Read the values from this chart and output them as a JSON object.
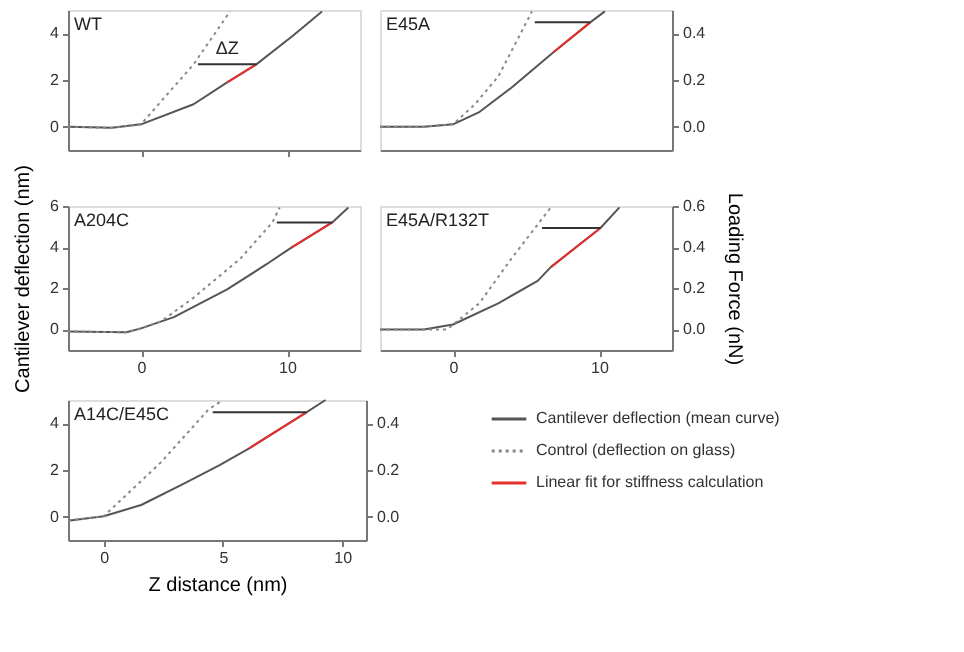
{
  "chart_data": [
    {
      "type": "line",
      "title": "WT",
      "xlim": [
        -5,
        15
      ],
      "xticks": [
        0,
        10
      ],
      "ylim": [
        -1,
        5
      ],
      "yticks": [
        0,
        2,
        4
      ],
      "tick_labels": "y",
      "annotations": [
        "ΔZ"
      ],
      "series": [
        {
          "color": "#555555",
          "x": [
            -5,
            -2,
            0,
            3.6,
            5.9,
            7.9,
            10.4,
            12.4
          ],
          "values": [
            0,
            -0.05,
            0.1,
            0.96,
            1.9,
            2.67,
            3.9,
            4.94
          ]
        },
        {
          "color": "#888888",
          "line_style": "dotted",
          "x": [
            -5,
            -2,
            0,
            3.6,
            6.1
          ],
          "values": [
            0,
            -0.05,
            0.1,
            2.67,
            4.94
          ]
        },
        {
          "color": "#e8302a",
          "x": [
            5.9,
            7.9
          ],
          "values": [
            1.9,
            2.67
          ]
        },
        {
          "color": "#333333",
          "x": [
            3.9,
            7.9
          ],
          "values": [
            2.67,
            2.67
          ]
        }
      ]
    },
    {
      "type": "line",
      "title": "E45A",
      "xlim": [
        -5,
        15
      ],
      "y2lim": [
        -0.1,
        0.5
      ],
      "y2ticks": [
        {
          "value": 0,
          "label": "0.0"
        },
        {
          "value": 0.2,
          "label": "0.2"
        },
        {
          "value": 0.4,
          "label": "0.4"
        }
      ],
      "tick_labels": "y2",
      "series": [
        {
          "color": "#555555",
          "axis": "y2",
          "x": [
            -5,
            -2,
            0,
            1.76,
            4.0,
            6.9,
            9.4,
            10.4
          ],
          "values": [
            0,
            0,
            0.01,
            0.061,
            0.167,
            0.32,
            0.447,
            0.494
          ]
        },
        {
          "color": "#888888",
          "axis": "y2",
          "line_style": "dotted",
          "x": [
            -5,
            -2,
            0,
            1.5,
            3.1,
            5.1,
            5.4
          ],
          "values": [
            0,
            0,
            0.01,
            0.096,
            0.215,
            0.456,
            0.494
          ]
        },
        {
          "color": "#e8302a",
          "axis": "y2",
          "x": [
            6.9,
            9.4
          ],
          "values": [
            0.32,
            0.447
          ]
        },
        {
          "color": "#333333",
          "axis": "y2",
          "x": [
            5.6,
            9.4
          ],
          "values": [
            0.447,
            0.447
          ]
        }
      ]
    },
    {
      "type": "line",
      "title": "A204C",
      "xlim": [
        -5,
        15
      ],
      "xticks": [
        0,
        10
      ],
      "ylim": [
        -1,
        6
      ],
      "yticks": [
        0,
        2,
        4,
        6
      ],
      "ylabel": "Cantilever deflection (nm)",
      "series": [
        {
          "color": "#555555",
          "x": [
            -5,
            -1,
            0,
            2.25,
            5.9,
            8.6,
            10.3,
            13.1,
            14.2
          ],
          "values": [
            -0.1,
            -0.14,
            0.05,
            0.6,
            1.95,
            3.17,
            3.98,
            5.2,
            5.93
          ]
        },
        {
          "color": "#888888",
          "line_style": "dotted",
          "x": [
            -5,
            -1,
            0,
            1.4,
            3.6,
            6.8,
            9.0,
            9.5
          ],
          "values": [
            -0.1,
            -0.14,
            0.05,
            0.4,
            1.54,
            3.44,
            5.2,
            5.93
          ]
        },
        {
          "color": "#e8302a",
          "x": [
            10.3,
            13.1
          ],
          "values": [
            3.98,
            5.2
          ]
        },
        {
          "color": "#333333",
          "x": [
            9.3,
            13.1
          ],
          "values": [
            5.2,
            5.2
          ]
        }
      ]
    },
    {
      "type": "line",
      "title": "E45A/R132T",
      "xlim": [
        -5,
        15
      ],
      "xticks": [
        0,
        10
      ],
      "y2lim": [
        -0.1,
        0.6
      ],
      "y2ticks": [
        {
          "value": 0,
          "label": "0.0"
        },
        {
          "value": 0.2,
          "label": "0.2"
        },
        {
          "value": 0.4,
          "label": "0.4"
        },
        {
          "value": 0.6,
          "label": "0.6"
        }
      ],
      "y2label": "Loading Force (nN)",
      "series": [
        {
          "color": "#555555",
          "axis": "y2",
          "x": [
            -5,
            -2,
            0,
            3.1,
            5.8,
            6.7,
            10.1,
            11.4
          ],
          "values": [
            0,
            0,
            0.024,
            0.127,
            0.236,
            0.303,
            0.493,
            0.593
          ]
        },
        {
          "color": "#888888",
          "axis": "y2",
          "line_style": "dotted",
          "x": [
            -5,
            -2,
            -0.4,
            1.8,
            4.0,
            6.7
          ],
          "values": [
            0,
            0,
            0,
            0.127,
            0.344,
            0.593
          ]
        },
        {
          "color": "#e8302a",
          "axis": "y2",
          "x": [
            6.7,
            10.1
          ],
          "values": [
            0.303,
            0.493
          ]
        },
        {
          "color": "#333333",
          "axis": "y2",
          "x": [
            6.1,
            10.1
          ],
          "values": [
            0.493,
            0.493
          ]
        }
      ]
    },
    {
      "type": "line",
      "title": "A14C/E45C",
      "xlim": [
        -1.5,
        11
      ],
      "xticks": [
        0,
        5,
        10
      ],
      "ylim": [
        -1,
        5
      ],
      "yticks": [
        0,
        2,
        4
      ],
      "y2lim": [
        -0.1,
        0.5
      ],
      "y2ticks": [
        {
          "value": 0,
          "label": "0.0"
        },
        {
          "value": 0.2,
          "label": "0.2"
        },
        {
          "value": 0.4,
          "label": "0.4"
        }
      ],
      "xlabel": "Z distance (nm)",
      "legend": "right",
      "series": [
        {
          "name": "Cantilever deflection (mean curve)",
          "color": "#555555",
          "x": [
            -1.5,
            0,
            1.57,
            3.3,
            4.86,
            6.1,
            8.5,
            9.3
          ],
          "values": [
            -0.17,
            0.02,
            0.5,
            1.38,
            2.21,
            2.93,
            4.47,
            5.0
          ]
        },
        {
          "name": "Control (deflection on glass)",
          "color": "#888888",
          "line_style": "dotted",
          "x": [
            -1.5,
            0,
            2.4,
            4.4,
            5.0
          ],
          "values": [
            -0.17,
            0.02,
            2.33,
            4.6,
            5.0
          ]
        },
        {
          "name": "Linear fit for stiffness calculation",
          "color": "#e8302a",
          "x": [
            6.1,
            8.5
          ],
          "values": [
            2.93,
            4.47
          ]
        },
        {
          "color": "#333333",
          "x": [
            4.57,
            8.5
          ],
          "values": [
            4.47,
            4.47
          ]
        }
      ]
    }
  ]
}
